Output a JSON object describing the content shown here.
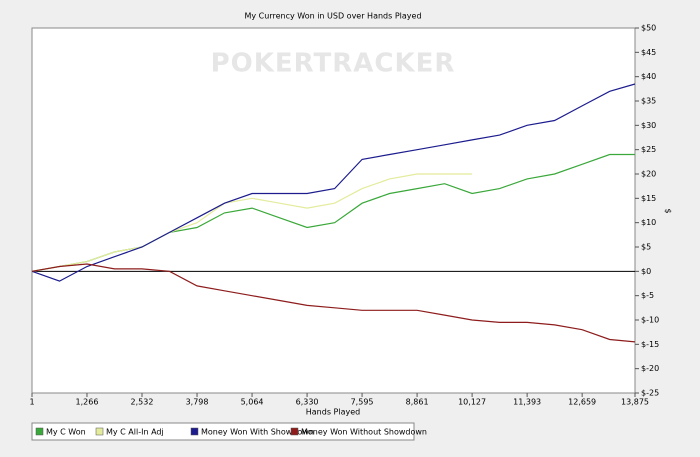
{
  "chart_data": {
    "type": "line",
    "title": "My Currency Won in USD over Hands Played",
    "watermark": "POKERTRACKER",
    "x_label": "Hands Played",
    "y_label": "$",
    "x": [
      1,
      633,
      1266,
      1899,
      2532,
      3165,
      3798,
      4431,
      5064,
      5697,
      6330,
      6963,
      7595,
      8228,
      8861,
      9494,
      10127,
      10760,
      11393,
      12026,
      12659,
      13292,
      13875
    ],
    "series": [
      {
        "name": "My C Won",
        "color": "#3aa83a",
        "values": [
          0,
          1,
          2,
          4,
          5,
          8,
          9,
          12,
          13,
          11,
          9,
          10,
          14,
          16,
          17,
          18,
          16,
          17,
          19,
          20,
          22,
          24,
          24
        ]
      },
      {
        "name": "My C All-In Adj",
        "color": "#e4eb9c",
        "values": [
          0,
          1,
          2,
          4,
          5,
          8,
          10,
          14,
          15,
          14,
          13,
          14,
          17,
          19,
          20,
          20,
          20,
          null,
          null,
          null,
          null,
          null,
          null
        ]
      },
      {
        "name": "Money Won With Showdown",
        "color": "#1c1c8e",
        "values": [
          0,
          -2,
          1,
          3,
          5,
          8,
          11,
          14,
          16,
          16,
          16,
          17,
          23,
          24,
          25,
          26,
          27,
          28,
          30,
          31,
          34,
          37,
          38.5
        ]
      },
      {
        "name": "Money Won Without Showdown",
        "color": "#8e1c1c",
        "values": [
          0,
          1,
          1.5,
          0.5,
          0.5,
          0,
          -3,
          -4,
          -5,
          -6,
          -7,
          -7.5,
          -8,
          -8,
          -8,
          -9,
          -10,
          -10.5,
          -10.5,
          -11,
          -12,
          -14,
          -14.5
        ]
      }
    ],
    "xlim": [
      1,
      13875
    ],
    "xticks": [
      1,
      {
        "value": 1266,
        "label": "1,266"
      },
      {
        "value": 2532,
        "label": "2,532"
      },
      {
        "value": 3798,
        "label": "3,798"
      },
      {
        "value": 5064,
        "label": "5,064"
      },
      {
        "value": 6330,
        "label": "6,330"
      },
      {
        "value": 7595,
        "label": "7,595"
      },
      {
        "value": 8861,
        "label": "8,861"
      },
      {
        "value": 10127,
        "label": "10,127"
      },
      {
        "value": 11393,
        "label": "11,393"
      },
      {
        "value": 12659,
        "label": "12,659"
      },
      {
        "value": 13875,
        "label": "13,875"
      }
    ],
    "ylim": [
      -25,
      50
    ],
    "yticks": [
      {
        "value": -25,
        "label": "$-25"
      },
      {
        "value": -20,
        "label": "$-20"
      },
      {
        "value": -15,
        "label": "$-15"
      },
      {
        "value": -10,
        "label": "$-10"
      },
      {
        "value": -5,
        "label": "$-5"
      },
      {
        "value": 0,
        "label": "$0"
      },
      {
        "value": 5,
        "label": "$5"
      },
      {
        "value": 10,
        "label": "$10"
      },
      {
        "value": 15,
        "label": "$15"
      },
      {
        "value": 20,
        "label": "$20"
      },
      {
        "value": 25,
        "label": "$25"
      },
      {
        "value": 30,
        "label": "$30"
      },
      {
        "value": 35,
        "label": "$35"
      },
      {
        "value": 40,
        "label": "$40"
      },
      {
        "value": 45,
        "label": "$45"
      },
      {
        "value": 50,
        "label": "$50"
      }
    ],
    "grid": false
  }
}
